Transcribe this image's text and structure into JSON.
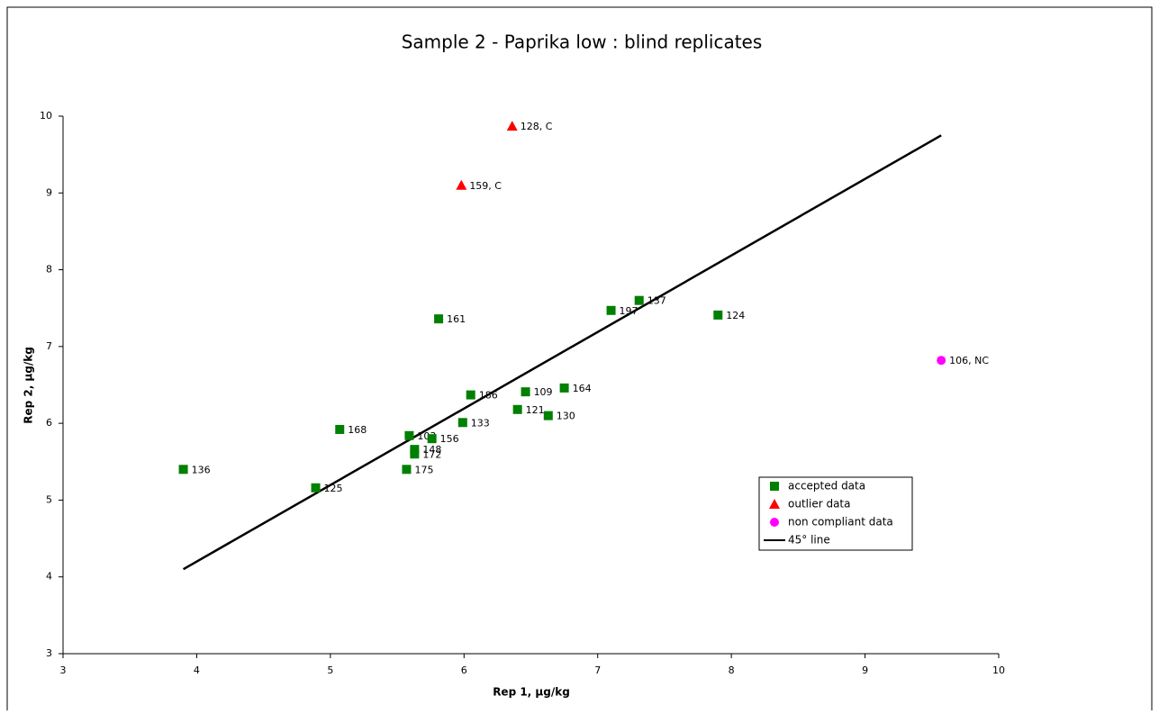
{
  "chart_data": {
    "type": "scatter",
    "title": "Sample 2 - Paprika low : blind replicates",
    "x_label": "Rep 1,  µg/kg",
    "y_label": "Rep 2,  µg/kg",
    "xlim": [
      3,
      10
    ],
    "ylim": [
      3,
      10
    ],
    "xticks": [
      3,
      4,
      5,
      6,
      7,
      8,
      9,
      10
    ],
    "yticks": [
      3,
      4,
      5,
      6,
      7,
      8,
      9,
      10
    ],
    "grid": false,
    "legend": "lower right",
    "series": [
      {
        "name": "accepted data",
        "color": "#008000",
        "marker": "square",
        "x": [
          3.9,
          4.89,
          5.07,
          5.59,
          5.63,
          5.63,
          5.57,
          5.76,
          5.81,
          6.05,
          5.99,
          6.46,
          6.4,
          6.63,
          6.75,
          7.1,
          7.31,
          7.9
        ],
        "values": [
          5.4,
          5.16,
          5.92,
          5.84,
          5.66,
          5.6,
          5.4,
          5.8,
          7.36,
          6.37,
          6.01,
          6.41,
          6.18,
          6.1,
          6.46,
          7.47,
          7.6,
          7.41
        ],
        "point_labels": [
          "136",
          "125",
          "168",
          "103",
          "148",
          "172",
          "175",
          "156",
          "161",
          "186",
          "133",
          "109",
          "121",
          "130",
          "164",
          "197",
          "137",
          "124"
        ]
      },
      {
        "name": "outlier data",
        "color": "#ff0000",
        "marker": "triangle",
        "x": [
          6.36,
          5.98
        ],
        "values": [
          9.87,
          9.1
        ],
        "point_labels": [
          "128, C",
          "159, C"
        ]
      },
      {
        "name": "non compliant data",
        "color": "#ff00ff",
        "marker": "circle",
        "x": [
          9.57
        ],
        "values": [
          6.82
        ],
        "point_labels": [
          "106, NC"
        ]
      },
      {
        "name": "45° line",
        "color": "#000000",
        "marker": "line",
        "x": [
          3.9,
          9.57
        ],
        "values": [
          4.1,
          9.75
        ]
      }
    ]
  }
}
